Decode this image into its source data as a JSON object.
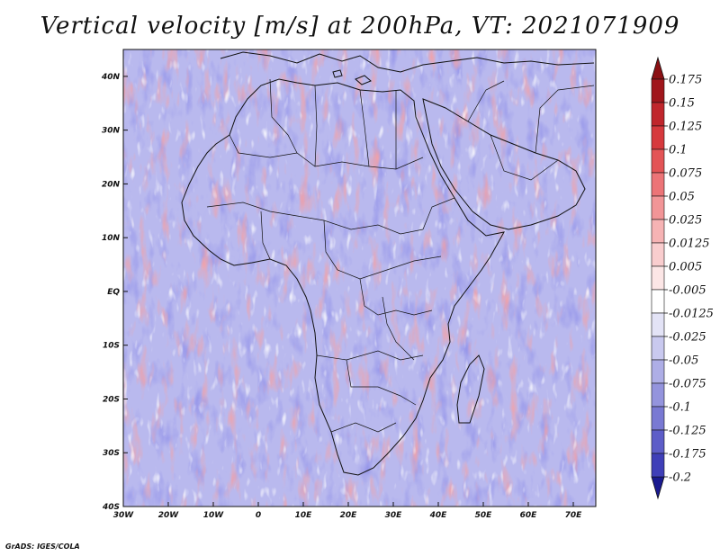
{
  "title": "Vertical velocity [m/s] at 200hPa, VT: 2021071909",
  "credit": "GrADS: IGES/COLA",
  "map": {
    "lon_range": [
      -30,
      75
    ],
    "lat_range": [
      -40,
      45
    ],
    "lon_ticks": [
      {
        "value": -30,
        "label": "30W"
      },
      {
        "value": -20,
        "label": "20W"
      },
      {
        "value": -10,
        "label": "10W"
      },
      {
        "value": 0,
        "label": "0"
      },
      {
        "value": 10,
        "label": "10E"
      },
      {
        "value": 20,
        "label": "20E"
      },
      {
        "value": 30,
        "label": "30E"
      },
      {
        "value": 40,
        "label": "40E"
      },
      {
        "value": 50,
        "label": "50E"
      },
      {
        "value": 60,
        "label": "60E"
      },
      {
        "value": 70,
        "label": "70E"
      }
    ],
    "lat_ticks": [
      {
        "value": 40,
        "label": "40N"
      },
      {
        "value": 30,
        "label": "30N"
      },
      {
        "value": 20,
        "label": "20N"
      },
      {
        "value": 10,
        "label": "10N"
      },
      {
        "value": 0,
        "label": "EQ"
      },
      {
        "value": -10,
        "label": "10S"
      },
      {
        "value": -20,
        "label": "20S"
      },
      {
        "value": -30,
        "label": "30S"
      },
      {
        "value": -40,
        "label": "40S"
      }
    ]
  },
  "colorbar": {
    "levels": [
      {
        "label": "0.175",
        "color": "#a0161c"
      },
      {
        "label": "0.15",
        "color": "#c0262c"
      },
      {
        "label": "0.125",
        "color": "#d6393d"
      },
      {
        "label": "0.1",
        "color": "#e35456"
      },
      {
        "label": "0.075",
        "color": "#ec7477"
      },
      {
        "label": "0.05",
        "color": "#f29597"
      },
      {
        "label": "0.025",
        "color": "#f6b3b4"
      },
      {
        "label": "0.0125",
        "color": "#f9cdce"
      },
      {
        "label": "0.005",
        "color": "#fce6e6"
      },
      {
        "label": "-0.005",
        "color": "#ffffff"
      },
      {
        "label": "-0.0125",
        "color": "#e3e3f6"
      },
      {
        "label": "-0.025",
        "color": "#c9c9ef"
      },
      {
        "label": "-0.05",
        "color": "#aeaee6"
      },
      {
        "label": "-0.075",
        "color": "#9494dd"
      },
      {
        "label": "-0.1",
        "color": "#7979d3"
      },
      {
        "label": "-0.125",
        "color": "#5d5dc8"
      },
      {
        "label": "-0.175",
        "color": "#3f3fb8"
      },
      {
        "label": "-0.2",
        "color": "#2525a5"
      }
    ],
    "top_color": "#8b1014",
    "bottom_color": "#1a1a90"
  }
}
